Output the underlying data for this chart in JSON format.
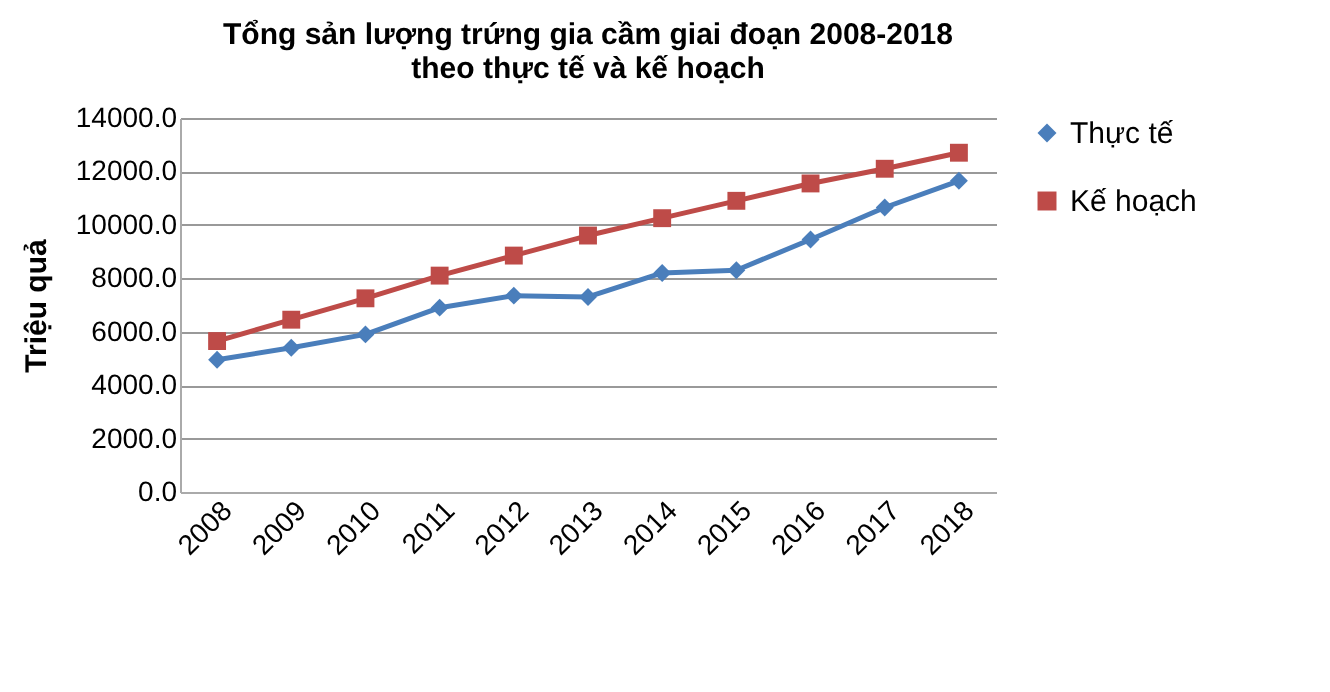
{
  "chart_data": {
    "type": "line",
    "title": "Tổng sản lượng trứng gia cầm giai đoạn 2008-2018\ntheo thực tế và kế hoạch",
    "ylabel": "Triệu quả",
    "categories": [
      "2008",
      "2009",
      "2010",
      "2011",
      "2012",
      "2013",
      "2014",
      "2015",
      "2016",
      "2017",
      "2018"
    ],
    "series": [
      {
        "name": "Thực tế",
        "color": "#4a7ebb",
        "marker": "diamond",
        "values": [
          4950,
          5400,
          5900,
          6900,
          7350,
          7300,
          8200,
          8300,
          9450,
          10650,
          11650
        ]
      },
      {
        "name": "Kế hoạch",
        "color": "#be4b48",
        "marker": "square",
        "values": [
          5650,
          6450,
          7250,
          8100,
          8850,
          9600,
          10250,
          10900,
          11550,
          12100,
          12700
        ]
      }
    ],
    "ylim": [
      0,
      14000
    ],
    "yticks": [
      {
        "value": 0,
        "label": "0.0"
      },
      {
        "value": 2000,
        "label": "2000.0"
      },
      {
        "value": 4000,
        "label": "4000.0"
      },
      {
        "value": 6000,
        "label": "6000.0"
      },
      {
        "value": 8000,
        "label": "8000.0"
      },
      {
        "value": 10000,
        "label": "10000.0"
      },
      {
        "value": 12000,
        "label": "12000.0"
      },
      {
        "value": 14000,
        "label": "14000.0"
      }
    ],
    "grid": "y",
    "legend": "right"
  }
}
